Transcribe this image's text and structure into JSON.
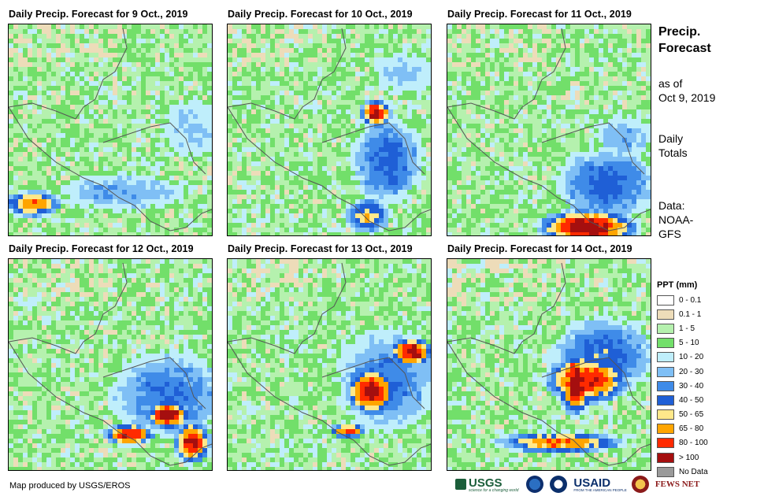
{
  "maps": [
    {
      "title": "Daily Precip. Forecast for 9 Oct., 2019"
    },
    {
      "title": "Daily Precip. Forecast for 10 Oct., 2019"
    },
    {
      "title": "Daily Precip. Forecast for 11 Oct., 2019"
    },
    {
      "title": "Daily Precip. Forecast for 12 Oct., 2019"
    },
    {
      "title": "Daily Precip. Forecast for 13 Oct., 2019"
    },
    {
      "title": "Daily Precip. Forecast for 14 Oct., 2019"
    }
  ],
  "side": {
    "heading_line1": "Precip.",
    "heading_line2": "Forecast",
    "asof_line1": "as of",
    "asof_line2": "Oct 9, 2019",
    "totals_line1": "Daily",
    "totals_line2": "Totals",
    "source_line1": "Data:",
    "source_line2": "NOAA-",
    "source_line3": "GFS"
  },
  "legend": {
    "title": "PPT (mm)",
    "classes": [
      {
        "label": "0 - 0.1",
        "color": "#ffffff"
      },
      {
        "label": "0.1 - 1",
        "color": "#eddcb9"
      },
      {
        "label": "1 - 5",
        "color": "#b5f1ae"
      },
      {
        "label": "5 - 10",
        "color": "#72df6a"
      },
      {
        "label": "10 - 20",
        "color": "#bfeefb"
      },
      {
        "label": "20 - 30",
        "color": "#7fbff5"
      },
      {
        "label": "30 - 40",
        "color": "#3f8be8"
      },
      {
        "label": "40 - 50",
        "color": "#1f5fd6"
      },
      {
        "label": "50 - 65",
        "color": "#ffe88a"
      },
      {
        "label": "65 - 80",
        "color": "#ffa500"
      },
      {
        "label": "80 - 100",
        "color": "#ff2a00"
      },
      {
        "label": "> 100",
        "color": "#a50f0f"
      },
      {
        "label": "No Data",
        "color": "#9a9a9a"
      }
    ]
  },
  "credit": "Map produced by USGS/EROS",
  "logos": {
    "usgs": "USGS",
    "usgs_tag": "science for a changing world",
    "usaid": "USAID",
    "usaid_tag": "FROM THE AMERICAN PEOPLE",
    "fews": "FEWS NET"
  }
}
